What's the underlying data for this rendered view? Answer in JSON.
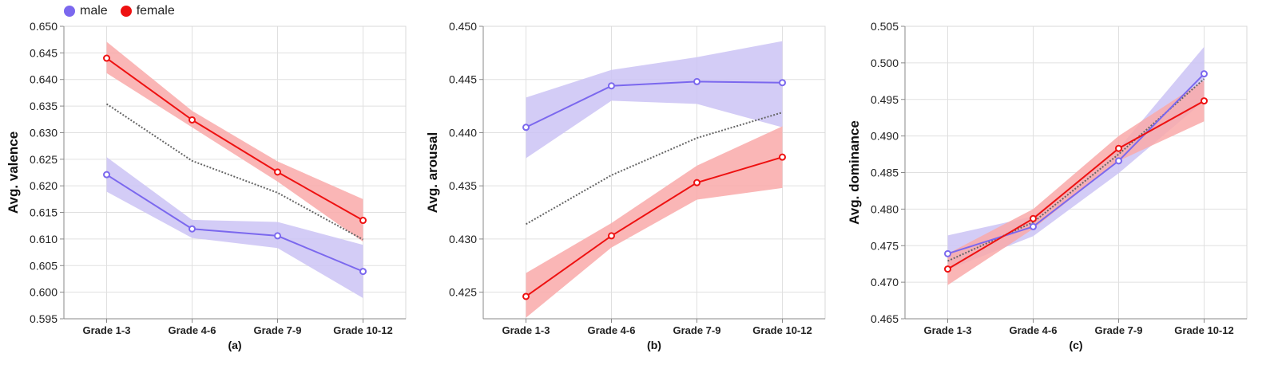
{
  "legend": {
    "items": [
      {
        "label": "male",
        "color": "#7b68ee"
      },
      {
        "label": "female",
        "color": "#ee1111"
      }
    ]
  },
  "colors": {
    "male_line": "#7b68ee",
    "male_band": "#cbc3f5",
    "female_line": "#ee1111",
    "female_band": "#f9a9a9",
    "average_dotted": "#666666",
    "gridline": "#e0e0e0",
    "axis": "#888888"
  },
  "chart_data": [
    {
      "type": "line",
      "panel_title": "(a)",
      "xlabel": "",
      "ylabel": "Avg. valence",
      "categories": [
        "Grade 1-3",
        "Grade 4-6",
        "Grade 7-9",
        "Grade 10-12"
      ],
      "ylim": [
        0.595,
        0.65
      ],
      "yticks": [
        0.595,
        0.6,
        0.605,
        0.61,
        0.615,
        0.62,
        0.625,
        0.63,
        0.635,
        0.64,
        0.645,
        0.65
      ],
      "series": [
        {
          "name": "male",
          "values": [
            0.6221,
            0.6119,
            0.6106,
            0.6039
          ],
          "lower": [
            0.6189,
            0.6102,
            0.6083,
            0.5989
          ],
          "upper": [
            0.6254,
            0.6136,
            0.6132,
            0.6089
          ]
        },
        {
          "name": "female",
          "values": [
            0.644,
            0.6324,
            0.6226,
            0.6135
          ],
          "lower": [
            0.6412,
            0.631,
            0.6208,
            0.6095
          ],
          "upper": [
            0.6471,
            0.6341,
            0.6246,
            0.6175
          ]
        },
        {
          "values": [
            0.6354,
            0.6247,
            0.6187,
            0.6099
          ],
          "style": "dotted"
        }
      ],
      "grid": true
    },
    {
      "type": "line",
      "panel_title": "(b)",
      "xlabel": "",
      "ylabel": "Avg. arousal",
      "categories": [
        "Grade 1-3",
        "Grade 4-6",
        "Grade 7-9",
        "Grade 10-12"
      ],
      "ylim": [
        0.4225,
        0.45
      ],
      "yticks": [
        0.425,
        0.43,
        0.435,
        0.44,
        0.445,
        0.45
      ],
      "series": [
        {
          "name": "male",
          "values": [
            0.4405,
            0.4444,
            0.4448,
            0.4447
          ],
          "lower": [
            0.4376,
            0.443,
            0.4427,
            0.4405
          ],
          "upper": [
            0.4433,
            0.4459,
            0.4471,
            0.4486
          ]
        },
        {
          "name": "female",
          "values": [
            0.4246,
            0.4303,
            0.4353,
            0.4377
          ],
          "lower": [
            0.4226,
            0.4292,
            0.4337,
            0.4348
          ],
          "upper": [
            0.4268,
            0.4315,
            0.4369,
            0.4406
          ]
        },
        {
          "values": [
            0.4314,
            0.436,
            0.4395,
            0.4419
          ],
          "style": "dotted"
        }
      ],
      "grid": true
    },
    {
      "type": "line",
      "panel_title": "(c)",
      "xlabel": "",
      "ylabel": "Avg. dominance",
      "categories": [
        "Grade 1-3",
        "Grade 4-6",
        "Grade 7-9",
        "Grade 10-12"
      ],
      "ylim": [
        0.465,
        0.505
      ],
      "yticks": [
        0.465,
        0.47,
        0.475,
        0.48,
        0.485,
        0.49,
        0.495,
        0.5,
        0.505
      ],
      "series": [
        {
          "name": "male",
          "values": [
            0.4739,
            0.4776,
            0.4866,
            0.4985
          ],
          "lower": [
            0.4717,
            0.4763,
            0.4849,
            0.4948
          ],
          "upper": [
            0.4764,
            0.479,
            0.4883,
            0.5022
          ]
        },
        {
          "name": "female",
          "values": [
            0.4718,
            0.4787,
            0.4883,
            0.4948
          ],
          "lower": [
            0.4696,
            0.4773,
            0.4866,
            0.492
          ],
          "upper": [
            0.4739,
            0.48,
            0.49,
            0.4976
          ]
        },
        {
          "values": [
            0.4729,
            0.4782,
            0.4875,
            0.4978
          ],
          "style": "dotted"
        }
      ],
      "grid": true
    }
  ]
}
